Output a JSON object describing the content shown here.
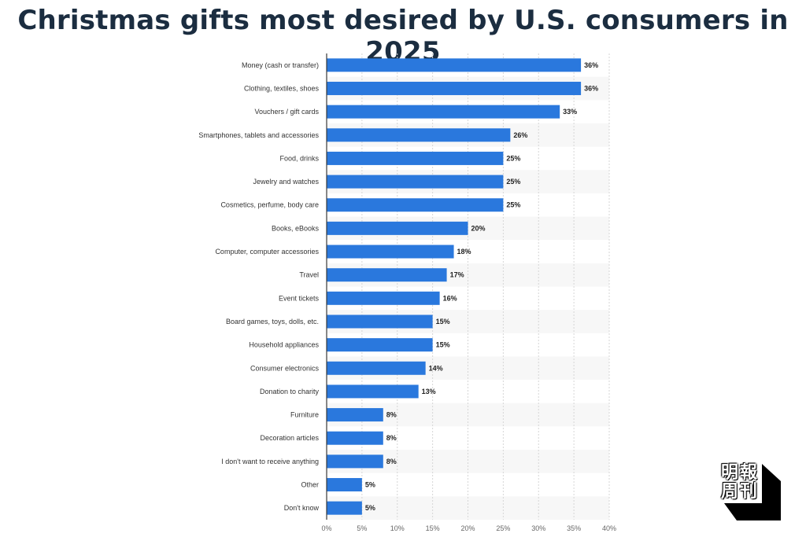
{
  "title": "Christmas gifts most desired by U.S. consumers in 2025",
  "colors": {
    "bar": "#2a78dd",
    "stripe": "#f7f7f7",
    "grid": "#d6d6d6",
    "axis": "#3a3a3a",
    "title": "#1b2d40"
  },
  "logo": {
    "text": "明報周刊"
  },
  "chart_data": {
    "type": "bar",
    "orientation": "horizontal",
    "title": "Christmas gifts most desired by U.S. consumers in 2025",
    "xlabel": "",
    "ylabel": "",
    "xlim": [
      0,
      40
    ],
    "x_ticks": [
      "0%",
      "5%",
      "10%",
      "15%",
      "20%",
      "25%",
      "30%",
      "35%",
      "40%"
    ],
    "value_suffix": "%",
    "grid": true,
    "categories": [
      "Money (cash or transfer)",
      "Clothing, textiles, shoes",
      "Vouchers / gift cards",
      "Smartphones, tablets and accessories",
      "Food, drinks",
      "Jewelry and watches",
      "Cosmetics, perfume, body care",
      "Books, eBooks",
      "Computer, computer accessories",
      "Travel",
      "Event tickets",
      "Board games, toys, dolls, etc.",
      "Household appliances",
      "Consumer electronics",
      "Donation to charity",
      "Furniture",
      "Decoration articles",
      "I don't want to receive anything",
      "Other",
      "Don't know"
    ],
    "values": [
      36,
      36,
      33,
      26,
      25,
      25,
      25,
      20,
      18,
      17,
      16,
      15,
      15,
      14,
      13,
      8,
      8,
      8,
      5,
      5
    ]
  }
}
